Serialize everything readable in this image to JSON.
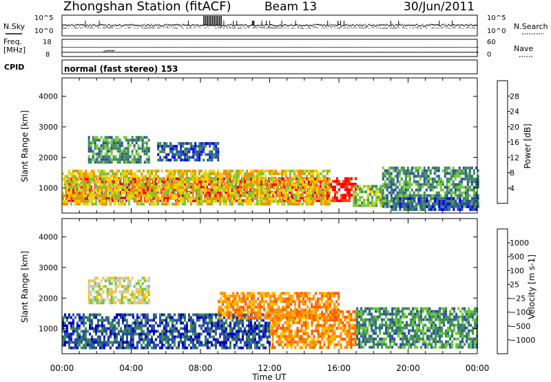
{
  "header": {
    "title": "Zhongshan Station (fitACF)",
    "beam": "Beam 13",
    "date": "30/Jun/2011"
  },
  "strip_nsky": {
    "left_label": "N.Sky",
    "right_label": "N.Search",
    "ticks_left": [
      "10^5",
      "10^0"
    ],
    "ticks_right": [
      "10^5",
      "10^0"
    ]
  },
  "strip_freq": {
    "left_label_1": "Freq.",
    "left_label_2": "[MHz]",
    "right_label": "Nave",
    "ticks_left": [
      "18",
      "8"
    ],
    "ticks_right": [
      "60",
      "0"
    ]
  },
  "cpid": {
    "label": "CPID",
    "mode": "normal (fast stereo) 153"
  },
  "x_axis": {
    "ticks": [
      "00:00",
      "04:00",
      "08:00",
      "12:00",
      "16:00",
      "20:00",
      "00:00"
    ],
    "label": "Time UT"
  },
  "colors": {
    "power": [
      "#0000ff",
      "#2850a0",
      "#3c8c50",
      "#78c83c",
      "#f0d200",
      "#ff8c00",
      "#ff4600",
      "#ff0000"
    ],
    "velocity": [
      "#ff0000",
      "#ff5a00",
      "#ff8c00",
      "#ffbe00",
      "#c8c8c8",
      "#64c832",
      "#3c8c50",
      "#2850a0",
      "#0000c8"
    ]
  },
  "chart_data": [
    {
      "type": "heatmap",
      "name": "power-panel",
      "ylabel": "Slant Range [km]",
      "y_ticks": [
        1000,
        2000,
        3000,
        4000
      ],
      "ylim": [
        180,
        4600
      ],
      "x_range_hours": [
        0,
        24
      ],
      "colorbar_label": "Power [dB]",
      "colorbar_ticks": [
        4,
        8,
        12,
        16,
        20,
        24,
        28
      ],
      "colorbar_range": [
        0,
        32
      ],
      "regions": [
        {
          "t": [
            0.2,
            17.0
          ],
          "r": [
            550,
            1350
          ],
          "level": 7
        },
        {
          "t": [
            0.0,
            15.5
          ],
          "r": [
            500,
            1600
          ],
          "level": 4
        },
        {
          "t": [
            1.5,
            5.0
          ],
          "r": [
            1850,
            2700
          ],
          "level": 2
        },
        {
          "t": [
            5.5,
            9.0
          ],
          "r": [
            1900,
            2500
          ],
          "level": 1
        },
        {
          "t": [
            16.8,
            18.5
          ],
          "r": [
            400,
            1100
          ],
          "level": 3
        },
        {
          "t": [
            18.5,
            24.0
          ],
          "r": [
            400,
            1700
          ],
          "level": 2
        },
        {
          "t": [
            19.0,
            24.0
          ],
          "r": [
            250,
            700
          ],
          "level": 1
        }
      ]
    },
    {
      "type": "heatmap",
      "name": "velocity-panel",
      "ylabel": "Slant Range [km]",
      "y_ticks": [
        1000,
        2000,
        3000,
        4000
      ],
      "ylim": [
        180,
        4600
      ],
      "x_range_hours": [
        0,
        24
      ],
      "colorbar_label": "Velocity [m s-1]",
      "colorbar_ticks": [
        "1000",
        "500",
        "100",
        "25",
        "−25",
        "−100",
        "−500",
        "−1000"
      ],
      "regions": [
        {
          "t": [
            0.0,
            12.0
          ],
          "r": [
            400,
            1500
          ],
          "level": 7
        },
        {
          "t": [
            12.0,
            17.0
          ],
          "r": [
            400,
            1600
          ],
          "level": 2
        },
        {
          "t": [
            1.5,
            5.0
          ],
          "r": [
            1850,
            2700
          ],
          "level": 4
        },
        {
          "t": [
            9.0,
            16.0
          ],
          "r": [
            1300,
            2200
          ],
          "level": 2
        },
        {
          "t": [
            17.0,
            24.0
          ],
          "r": [
            400,
            1700
          ],
          "level": 6
        }
      ]
    }
  ]
}
